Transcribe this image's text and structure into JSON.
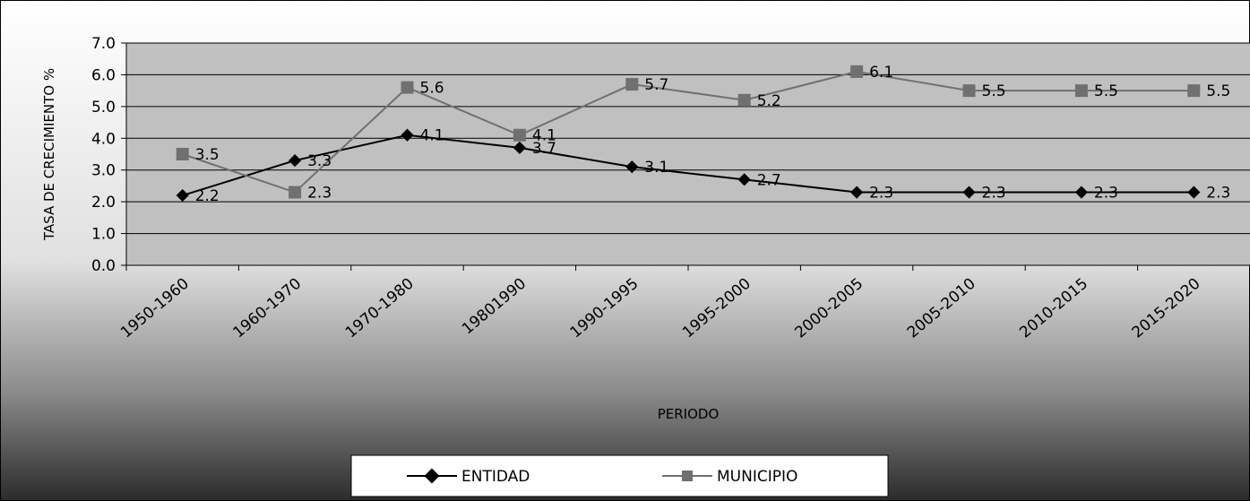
{
  "chart_data": {
    "type": "line",
    "title": "",
    "xlabel": "PERIODO",
    "ylabel": "TASA DE CRECIMIENTO %",
    "categories": [
      "1950-1960",
      "1960-1970",
      "1970-1980",
      "19801990",
      "1990-1995",
      "1995-2000",
      "2000-2005",
      "2005-2010",
      "2010-2015",
      "2015-2020"
    ],
    "ylim": [
      0,
      7
    ],
    "yticks": [
      "0.0",
      "1.0",
      "2.0",
      "3.0",
      "4.0",
      "5.0",
      "6.0",
      "7.0"
    ],
    "grid": true,
    "legend_position": "bottom",
    "series": [
      {
        "name": "ENTIDAD",
        "marker": "diamond",
        "color": "#000000",
        "values": [
          2.2,
          3.3,
          4.1,
          3.7,
          3.1,
          2.7,
          2.3,
          2.3,
          2.3,
          2.3
        ],
        "labels": [
          "2.2",
          "3.3",
          "4.1",
          "3.7",
          "3.1",
          "2.7",
          "2.3",
          "2.3",
          "2.3",
          "2.3"
        ]
      },
      {
        "name": "MUNICIPIO",
        "marker": "square",
        "color": "#707070",
        "values": [
          3.5,
          2.3,
          5.6,
          4.1,
          5.7,
          5.2,
          6.1,
          5.5,
          5.5,
          5.5
        ],
        "labels": [
          "3.5",
          "2.3",
          "5.6",
          "4.1",
          "5.7",
          "5.2",
          "6.1",
          "5.5",
          "5.5",
          "5.5"
        ]
      }
    ],
    "colors": {
      "plot_background": "#c0c0c0",
      "gridline": "#000000",
      "outer_gradient_top": "#ffffff",
      "outer_gradient_bottom": "#2b2b2b"
    }
  }
}
